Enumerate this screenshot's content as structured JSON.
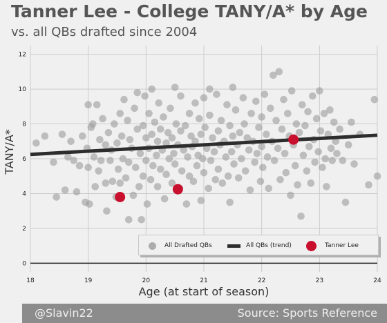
{
  "header": {
    "title": "Tanner Lee - College TANY/A* by Age",
    "subtitle": "vs. all QBs drafted since 2004"
  },
  "footer": {
    "left": "@Slavin22",
    "right": "Source: Sports Reference"
  },
  "colors": {
    "background": "#f0f0f0",
    "scatter": "#9b9b9b",
    "trend": "#2d2d2d",
    "highlight": "#c8102e",
    "footer": "#8c8c8c"
  },
  "chart_data": {
    "type": "scatter",
    "xlabel": "Age (at start of season)",
    "ylabel": "TANY/A*",
    "xlim": [
      18,
      24
    ],
    "ylim": [
      -0.5,
      12.5
    ],
    "xticks": [
      "18",
      "19",
      "20",
      "21",
      "22",
      "23",
      "24"
    ],
    "yticks": [
      "0",
      "2",
      "4",
      "6",
      "8",
      "10",
      "12"
    ],
    "grid": true,
    "legend": {
      "placement": "bottom-right",
      "entries": [
        "All Drafted QBs",
        "All QBs (trend)",
        "Tanner Lee"
      ]
    },
    "series": [
      {
        "name": "All Drafted QBs",
        "kind": "scatter",
        "points": [
          [
            18.1,
            6.9
          ],
          [
            18.25,
            7.3
          ],
          [
            18.4,
            5.8
          ],
          [
            18.45,
            3.8
          ],
          [
            18.55,
            7.4
          ],
          [
            18.6,
            4.2
          ],
          [
            18.65,
            6.1
          ],
          [
            18.7,
            7.0
          ],
          [
            18.75,
            5.9
          ],
          [
            18.8,
            4.1
          ],
          [
            18.85,
            5.6
          ],
          [
            18.9,
            7.3
          ],
          [
            18.95,
            3.5
          ],
          [
            18.98,
            6.6
          ],
          [
            19.0,
            9.1
          ],
          [
            19.0,
            5.5
          ],
          [
            19.02,
            3.4
          ],
          [
            19.05,
            7.8
          ],
          [
            19.08,
            8.0
          ],
          [
            19.1,
            6.1
          ],
          [
            19.12,
            4.4
          ],
          [
            19.15,
            9.1
          ],
          [
            19.18,
            5.3
          ],
          [
            19.2,
            7.1
          ],
          [
            19.22,
            5.9
          ],
          [
            19.25,
            8.3
          ],
          [
            19.3,
            6.8
          ],
          [
            19.3,
            4.6
          ],
          [
            19.32,
            3.0
          ],
          [
            19.35,
            7.5
          ],
          [
            19.38,
            5.9
          ],
          [
            19.4,
            6.5
          ],
          [
            19.42,
            4.7
          ],
          [
            19.45,
            8.0
          ],
          [
            19.48,
            3.8
          ],
          [
            19.5,
            6.9
          ],
          [
            19.52,
            5.4
          ],
          [
            19.55,
            8.6
          ],
          [
            19.55,
            4.6
          ],
          [
            19.58,
            7.3
          ],
          [
            19.6,
            6.0
          ],
          [
            19.62,
            9.4
          ],
          [
            19.65,
            4.9
          ],
          [
            19.68,
            8.2
          ],
          [
            19.7,
            5.8
          ],
          [
            19.7,
            2.5
          ],
          [
            19.72,
            7.1
          ],
          [
            19.75,
            6.6
          ],
          [
            19.78,
            3.9
          ],
          [
            19.8,
            8.9
          ],
          [
            19.82,
            5.5
          ],
          [
            19.85,
            7.7
          ],
          [
            19.85,
            9.8
          ],
          [
            19.88,
            4.4
          ],
          [
            19.9,
            6.3
          ],
          [
            19.92,
            2.5
          ],
          [
            19.95,
            7.9
          ],
          [
            19.95,
            5.0
          ],
          [
            19.98,
            9.6
          ],
          [
            20.0,
            7.2
          ],
          [
            20.0,
            5.9
          ],
          [
            20.02,
            3.4
          ],
          [
            20.05,
            8.6
          ],
          [
            20.05,
            6.6
          ],
          [
            20.08,
            4.8
          ],
          [
            20.1,
            7.4
          ],
          [
            20.1,
            10.0
          ],
          [
            20.12,
            5.6
          ],
          [
            20.15,
            8.1
          ],
          [
            20.18,
            6.2
          ],
          [
            20.2,
            7.0
          ],
          [
            20.2,
            4.4
          ],
          [
            20.22,
            9.2
          ],
          [
            20.25,
            5.4
          ],
          [
            20.25,
            7.7
          ],
          [
            20.28,
            6.5
          ],
          [
            20.3,
            8.4
          ],
          [
            20.32,
            3.7
          ],
          [
            20.35,
            6.9
          ],
          [
            20.35,
            5.1
          ],
          [
            20.38,
            7.5
          ],
          [
            20.4,
            6.0
          ],
          [
            20.42,
            8.9
          ],
          [
            20.45,
            4.6
          ],
          [
            20.45,
            7.2
          ],
          [
            20.48,
            6.3
          ],
          [
            20.5,
            10.1
          ],
          [
            20.5,
            5.7
          ],
          [
            20.52,
            8.0
          ],
          [
            20.55,
            6.8
          ],
          [
            20.58,
            4.3
          ],
          [
            20.6,
            7.6
          ],
          [
            20.6,
            9.6
          ],
          [
            20.62,
            5.3
          ],
          [
            20.65,
            6.5
          ],
          [
            20.68,
            7.9
          ],
          [
            20.7,
            3.4
          ],
          [
            20.72,
            6.1
          ],
          [
            20.75,
            8.6
          ],
          [
            20.75,
            5.0
          ],
          [
            20.78,
            7.3
          ],
          [
            20.8,
            6.7
          ],
          [
            20.82,
            4.7
          ],
          [
            20.85,
            9.2
          ],
          [
            20.85,
            7.0
          ],
          [
            20.88,
            5.6
          ],
          [
            20.9,
            6.2
          ],
          [
            20.92,
            8.3
          ],
          [
            20.95,
            3.6
          ],
          [
            20.95,
            7.4
          ],
          [
            20.98,
            6.0
          ],
          [
            21.0,
            9.5
          ],
          [
            21.0,
            5.2
          ],
          [
            21.02,
            7.8
          ],
          [
            21.05,
            6.6
          ],
          [
            21.08,
            4.3
          ],
          [
            21.1,
            8.5
          ],
          [
            21.1,
            10.0
          ],
          [
            21.12,
            5.9
          ],
          [
            21.15,
            7.2
          ],
          [
            21.18,
            6.4
          ],
          [
            21.2,
            4.8
          ],
          [
            21.22,
            9.7
          ],
          [
            21.25,
            7.6
          ],
          [
            21.25,
            5.4
          ],
          [
            21.28,
            6.8
          ],
          [
            21.3,
            8.2
          ],
          [
            21.32,
            4.6
          ],
          [
            21.35,
            7.0
          ],
          [
            21.38,
            6.1
          ],
          [
            21.4,
            9.1
          ],
          [
            21.42,
            5.0
          ],
          [
            21.45,
            7.9
          ],
          [
            21.45,
            3.5
          ],
          [
            21.48,
            6.4
          ],
          [
            21.5,
            10.1
          ],
          [
            21.5,
            7.3
          ],
          [
            21.52,
            5.7
          ],
          [
            21.55,
            8.8
          ],
          [
            21.58,
            6.8
          ],
          [
            21.6,
            4.9
          ],
          [
            21.62,
            7.5
          ],
          [
            21.65,
            6.0
          ],
          [
            21.68,
            9.5
          ],
          [
            21.7,
            8.0
          ],
          [
            21.72,
            5.3
          ],
          [
            21.75,
            7.2
          ],
          [
            21.78,
            6.5
          ],
          [
            21.8,
            4.2
          ],
          [
            21.82,
            8.6
          ],
          [
            21.85,
            7.0
          ],
          [
            21.88,
            5.8
          ],
          [
            21.9,
            9.3
          ],
          [
            21.92,
            6.3
          ],
          [
            21.95,
            7.8
          ],
          [
            21.98,
            4.7
          ],
          [
            22.0,
            8.4
          ],
          [
            22.0,
            6.7
          ],
          [
            22.02,
            5.5
          ],
          [
            22.05,
            9.7
          ],
          [
            22.08,
            7.4
          ],
          [
            22.1,
            6.1
          ],
          [
            22.12,
            4.3
          ],
          [
            22.15,
            8.9
          ],
          [
            22.18,
            7.0
          ],
          [
            22.2,
            10.8
          ],
          [
            22.22,
            5.9
          ],
          [
            22.25,
            8.2
          ],
          [
            22.28,
            6.6
          ],
          [
            22.3,
            11.0
          ],
          [
            22.32,
            4.8
          ],
          [
            22.35,
            7.7
          ],
          [
            22.38,
            9.4
          ],
          [
            22.4,
            6.3
          ],
          [
            22.42,
            5.2
          ],
          [
            22.45,
            8.6
          ],
          [
            22.48,
            7.3
          ],
          [
            22.5,
            3.9
          ],
          [
            22.52,
            9.9
          ],
          [
            22.55,
            6.8
          ],
          [
            22.58,
            5.6
          ],
          [
            22.6,
            8.0
          ],
          [
            22.62,
            4.5
          ],
          [
            22.65,
            7.5
          ],
          [
            22.68,
            2.7
          ],
          [
            22.7,
            9.1
          ],
          [
            22.72,
            6.2
          ],
          [
            22.75,
            7.9
          ],
          [
            22.78,
            5.3
          ],
          [
            22.8,
            8.7
          ],
          [
            22.82,
            6.7
          ],
          [
            22.85,
            4.6
          ],
          [
            22.88,
            9.6
          ],
          [
            22.9,
            7.1
          ],
          [
            22.92,
            5.8
          ],
          [
            22.95,
            8.3
          ],
          [
            22.98,
            6.4
          ],
          [
            23.0,
            9.9
          ],
          [
            23.02,
            7.6
          ],
          [
            23.05,
            5.5
          ],
          [
            23.08,
            8.6
          ],
          [
            23.1,
            6.0
          ],
          [
            23.12,
            4.4
          ],
          [
            23.15,
            7.4
          ],
          [
            23.18,
            8.8
          ],
          [
            23.2,
            6.6
          ],
          [
            23.22,
            5.9
          ],
          [
            23.25,
            8.1
          ],
          [
            23.28,
            7.0
          ],
          [
            23.3,
            6.3
          ],
          [
            23.35,
            7.7
          ],
          [
            23.4,
            5.9
          ],
          [
            23.45,
            3.5
          ],
          [
            23.5,
            6.8
          ],
          [
            23.55,
            8.1
          ],
          [
            23.6,
            5.7
          ],
          [
            23.7,
            7.4
          ],
          [
            23.85,
            4.5
          ],
          [
            23.95,
            9.4
          ],
          [
            24.0,
            5.0
          ]
        ]
      },
      {
        "name": "All QBs (trend)",
        "kind": "line",
        "points": [
          [
            18.0,
            6.25
          ],
          [
            24.0,
            7.35
          ]
        ]
      },
      {
        "name": "Tanner Lee",
        "kind": "scatter",
        "points": [
          [
            19.55,
            3.8
          ],
          [
            20.55,
            4.25
          ],
          [
            22.55,
            7.1
          ]
        ]
      }
    ]
  }
}
